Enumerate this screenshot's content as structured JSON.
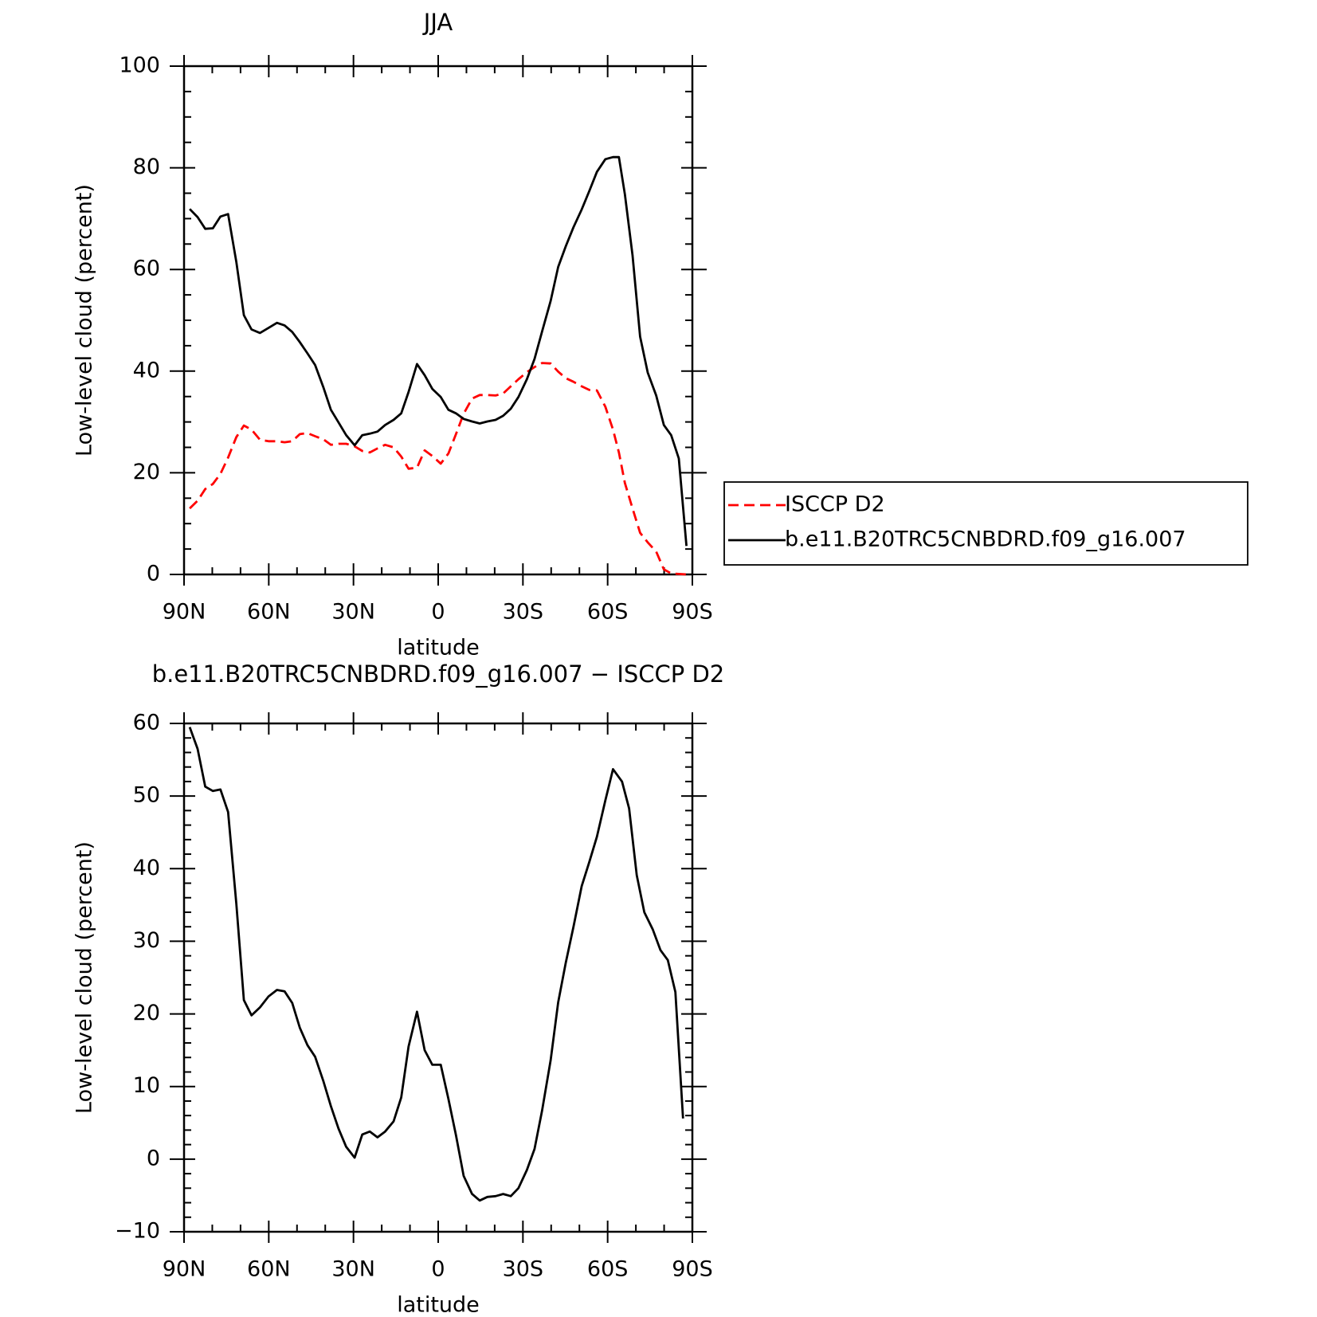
{
  "chart_data": [
    {
      "type": "line",
      "title": "JJA",
      "xlabel": "latitude",
      "ylabel": "Low-level cloud (percent)",
      "x": [
        88,
        85.2,
        82.5,
        79.8,
        77.1,
        74.4,
        71.5,
        68.8,
        66.1,
        63.1,
        60.1,
        57.1,
        54.4,
        51.7,
        49,
        46.3,
        43.6,
        40.7,
        38,
        35.3,
        32.6,
        29.6,
        26.9,
        24.2,
        21.5,
        18.8,
        15.8,
        13.1,
        10.5,
        7.5,
        4.8,
        2.1,
        -0.9,
        -3.6,
        -6.3,
        -9,
        -12,
        -14.7,
        -17.4,
        -20.3,
        -23,
        -25.7,
        -28.4,
        -31.4,
        -34.1,
        -36.8,
        -39.8,
        -42.5,
        -45.2,
        -47.9,
        -50.8,
        -53.5,
        -56.2,
        -59.2,
        -61.9,
        -64,
        -66.1,
        -68.8,
        -71.5,
        -74.2,
        -77.2,
        -79.9,
        -82.5,
        -85.2,
        -87.9
      ],
      "series": [
        {
          "name": "ISCCP D2",
          "color": "#ff0000",
          "linestyle": "dashed",
          "values": [
            13,
            14.5,
            16.8,
            17.8,
            19.8,
            23,
            27,
            29.3,
            28.5,
            26.5,
            26.2,
            26.2,
            26,
            26.2,
            27.6,
            27.8,
            27.2,
            26.6,
            25.5,
            25.7,
            25.7,
            25.2,
            24.3,
            24,
            24.8,
            25.5,
            25,
            23.2,
            20.8,
            21,
            24.4,
            23.3,
            21.8,
            23.8,
            27.6,
            31.6,
            34.6,
            35.3,
            35.3,
            35.2,
            35.6,
            37,
            38.4,
            39.8,
            40.8,
            41.6,
            41.5,
            39.9,
            38.6,
            37.9,
            37,
            36.3,
            36.2,
            33,
            28.5,
            24,
            18,
            13,
            8.2,
            6.3,
            4.5,
            1,
            0.2,
            0.1,
            0
          ]
        },
        {
          "name": "b.e11.B20TRC5CNBDRD.f09_g16.007",
          "color": "#000000",
          "linestyle": "solid",
          "values": [
            71.9,
            70.3,
            68,
            68.1,
            70.4,
            70.9,
            61.5,
            51,
            48.2,
            47.5,
            48.5,
            49.5,
            49,
            47.7,
            45.7,
            43.5,
            41.2,
            36.9,
            32.4,
            29.9,
            27.4,
            25.4,
            27.4,
            27.7,
            28.1,
            29.4,
            30.4,
            31.7,
            35.9,
            41.4,
            39.2,
            36.5,
            34.9,
            32.4,
            31.7,
            30.6,
            30.1,
            29.7,
            30.1,
            30.4,
            31.2,
            32.6,
            34.9,
            38.4,
            42.4,
            47.8,
            53.8,
            60.5,
            64.6,
            68.3,
            71.8,
            75.4,
            79.2,
            81.7,
            82.1,
            82.1,
            74.8,
            62.8,
            46.8,
            39.7,
            35.2,
            29.4,
            27.4,
            22.8,
            5.6
          ]
        }
      ],
      "xlim": [
        90,
        -90
      ],
      "xticks": [
        {
          "value": 90,
          "label": "90N"
        },
        {
          "value": 60,
          "label": "60N"
        },
        {
          "value": 30,
          "label": "30N"
        },
        0,
        {
          "value": -30,
          "label": "30S"
        },
        {
          "value": -60,
          "label": "60S"
        },
        {
          "value": -90,
          "label": "90S"
        }
      ],
      "xminorticks": [
        80,
        70,
        50,
        40,
        20,
        10,
        -10,
        -20,
        -40,
        -50,
        -70,
        -80
      ],
      "ylim": [
        0,
        100
      ],
      "yticks": [
        0,
        20,
        40,
        60,
        80,
        100
      ],
      "yminorticks": [
        5,
        10,
        15,
        25,
        30,
        35,
        45,
        50,
        55,
        65,
        70,
        75,
        85,
        90,
        95
      ],
      "legend": "outside-right"
    },
    {
      "type": "line",
      "title": "b.e11.B20TRC5CNBDRD.f09_g16.007 − ISCCP D2",
      "xlabel": "latitude",
      "ylabel": "Low-level cloud (percent)",
      "x": [
        88,
        85.2,
        82.5,
        79.8,
        77.1,
        74.4,
        71.5,
        68.8,
        66.1,
        63.1,
        60.1,
        57.1,
        54.4,
        51.7,
        49,
        46.3,
        43.6,
        40.7,
        38,
        35.3,
        32.6,
        29.6,
        26.9,
        24.2,
        21.5,
        18.8,
        15.8,
        13.1,
        10.5,
        7.5,
        4.8,
        2.1,
        -0.9,
        -3.6,
        -6.3,
        -9,
        -12,
        -14.7,
        -17.4,
        -20.3,
        -23,
        -25.7,
        -28.4,
        -31.4,
        -34.1,
        -36.8,
        -39.8,
        -42.5,
        -45.2,
        -47.9,
        -50.8,
        -53.5,
        -56.2,
        -59.2,
        -61.9,
        -65.1,
        -67.6,
        -70.3,
        -73,
        -76,
        -78.7,
        -81.3,
        -84,
        -86.7
      ],
      "values": [
        59.5,
        56.5,
        51.3,
        50.7,
        50.9,
        47.8,
        35.2,
        21.9,
        19.8,
        20.9,
        22.4,
        23.3,
        23.1,
        21.5,
        18.1,
        15.7,
        14.1,
        10.8,
        7.3,
        4.2,
        1.7,
        0.2,
        3.4,
        3.8,
        3,
        3.8,
        5.2,
        8.5,
        15.5,
        20.3,
        15,
        13,
        13,
        8.3,
        3.3,
        -2.3,
        -4.8,
        -5.7,
        -5.2,
        -5.1,
        -4.8,
        -5.1,
        -4,
        -1.5,
        1.4,
        6.7,
        13.6,
        21.6,
        27.1,
        32,
        37.6,
        40.9,
        44.4,
        49.4,
        53.7,
        52,
        48.3,
        39.1,
        34,
        31.6,
        28.8,
        27.4,
        23,
        5.6
      ],
      "color": "#000000",
      "xlim": [
        90,
        -90
      ],
      "xticks": [
        {
          "value": 90,
          "label": "90N"
        },
        {
          "value": 60,
          "label": "60N"
        },
        {
          "value": 30,
          "label": "30N"
        },
        0,
        {
          "value": -30,
          "label": "30S"
        },
        {
          "value": -60,
          "label": "60S"
        },
        {
          "value": -90,
          "label": "90S"
        }
      ],
      "xminorticks": [
        80,
        70,
        50,
        40,
        20,
        10,
        -10,
        -20,
        -40,
        -50,
        -70,
        -80
      ],
      "ylim": [
        -10,
        60
      ],
      "yticks": [
        {
          "value": -10,
          "label": "−10"
        },
        0,
        10,
        20,
        30,
        40,
        50,
        60
      ],
      "yminorticks": [
        -8,
        -6,
        -4,
        -2,
        2,
        4,
        6,
        8,
        12,
        14,
        16,
        18,
        22,
        24,
        26,
        28,
        32,
        34,
        36,
        38,
        42,
        44,
        46,
        48,
        52,
        54,
        56,
        58
      ]
    }
  ]
}
